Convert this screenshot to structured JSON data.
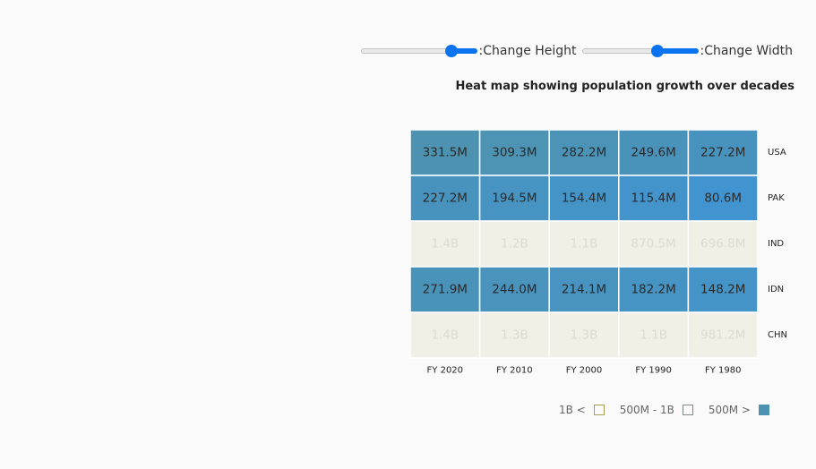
{
  "controls": {
    "height_label": ":Change Height",
    "width_label": ":Change Width",
    "height_value": 0.78,
    "width_value": 0.65
  },
  "colors": {
    "accent": "#0a74f0",
    "scale_low_value": 80.6,
    "scale_low_color": "#4294d0",
    "scale_high_value": 331.5,
    "scale_high_color": "#4d93b1",
    "light_cell_color": "#f1efe6",
    "light_text_color": "#dcdcd3",
    "dark_text_color": "#2a2a2a"
  },
  "chart_data": {
    "type": "heatmap",
    "title": "Heat map showing population growth over decades",
    "columns": [
      "FY 2020",
      "FY 2010",
      "FY 2000",
      "FY 1990",
      "FY 1980"
    ],
    "rows": [
      "USA",
      "PAK",
      "IND",
      "IDN",
      "CHN"
    ],
    "unit": "millions",
    "values": [
      [
        331.5,
        309.3,
        282.2,
        249.6,
        227.2
      ],
      [
        227.2,
        194.5,
        154.4,
        115.4,
        80.6
      ],
      [
        1400,
        1200,
        1100,
        870.5,
        696.8
      ],
      [
        271.9,
        244.0,
        214.1,
        182.2,
        148.2
      ],
      [
        1400,
        1300,
        1300,
        1100,
        981.2
      ]
    ],
    "labels": [
      [
        "331.5M",
        "309.3M",
        "282.2M",
        "249.6M",
        "227.2M"
      ],
      [
        "227.2M",
        "194.5M",
        "154.4M",
        "115.4M",
        "80.6M"
      ],
      [
        "1.4B",
        "1.2B",
        "1.1B",
        "870.5M",
        "696.8M"
      ],
      [
        "271.9M",
        "244.0M",
        "214.1M",
        "182.2M",
        "148.2M"
      ],
      [
        "1.4B",
        "1.3B",
        "1.3B",
        "1.1B",
        "981.2M"
      ]
    ],
    "legend": [
      {
        "label": "1B <",
        "swatch_fill": "#fafafa",
        "swatch_border": "#a39f52"
      },
      {
        "label": "500M - 1B",
        "swatch_fill": "#fafafa",
        "swatch_border": "#7b8a87"
      },
      {
        "label": "500M >",
        "swatch_fill": "#4d93b1",
        "swatch_border": "#4d93b1"
      }
    ],
    "legend_placement": "bottom-right"
  }
}
